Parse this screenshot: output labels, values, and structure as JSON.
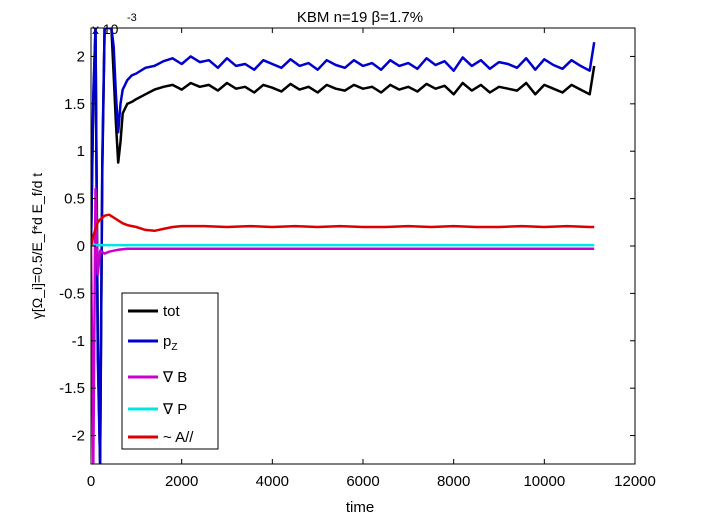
{
  "chart_data": {
    "type": "line",
    "title": "KBM n=19 β=1.7%",
    "xlabel": "time",
    "ylabel": "γ[Ω_i]=0.5/E_f*d E_f/d t",
    "y_exponent_label": "x 10",
    "y_exponent_power": "-3",
    "xlim": [
      0,
      12000
    ],
    "ylim": [
      -2.3,
      2.3
    ],
    "x_ticks": [
      0,
      2000,
      4000,
      6000,
      8000,
      10000,
      12000
    ],
    "x_tick_labels": [
      "0",
      "2000",
      "4000",
      "6000",
      "8000",
      "10000",
      "12000"
    ],
    "y_ticks": [
      -2,
      -1.5,
      -1,
      -0.5,
      0,
      0.5,
      1,
      1.5,
      2
    ],
    "y_tick_labels": [
      "-2",
      "-1.5",
      "-1",
      "-0.5",
      "0",
      "0.5",
      "1",
      "1.5",
      "2"
    ],
    "grid": false,
    "legend_position": "bottom-left",
    "series": [
      {
        "name": "tot",
        "color": "#000000",
        "x": [
          0,
          50,
          100,
          150,
          200,
          250,
          300,
          350,
          400,
          450,
          500,
          550,
          600,
          650,
          700,
          750,
          800,
          900,
          1000,
          1200,
          1400,
          1600,
          1800,
          2000,
          2200,
          2400,
          2600,
          2800,
          3000,
          3200,
          3400,
          3600,
          3800,
          4000,
          4200,
          4400,
          4600,
          4800,
          5000,
          5200,
          5400,
          5600,
          5800,
          6000,
          6200,
          6400,
          6600,
          6800,
          7000,
          7200,
          7400,
          7600,
          7800,
          8000,
          8200,
          8400,
          8600,
          8800,
          9000,
          9200,
          9400,
          9600,
          9800,
          10000,
          10200,
          10400,
          10600,
          10800,
          11000,
          11100
        ],
        "y": [
          0,
          1.5,
          2.3,
          -1.0,
          -2.3,
          0.8,
          2.3,
          2.3,
          2.3,
          2.3,
          1.8,
          1.3,
          0.88,
          1.1,
          1.4,
          1.45,
          1.5,
          1.52,
          1.55,
          1.6,
          1.65,
          1.68,
          1.7,
          1.65,
          1.72,
          1.68,
          1.7,
          1.64,
          1.72,
          1.66,
          1.68,
          1.62,
          1.7,
          1.67,
          1.63,
          1.71,
          1.65,
          1.68,
          1.62,
          1.7,
          1.66,
          1.64,
          1.7,
          1.66,
          1.68,
          1.62,
          1.7,
          1.65,
          1.68,
          1.63,
          1.71,
          1.66,
          1.69,
          1.6,
          1.72,
          1.64,
          1.7,
          1.62,
          1.68,
          1.66,
          1.64,
          1.72,
          1.6,
          1.7,
          1.66,
          1.62,
          1.7,
          1.65,
          1.6,
          1.9
        ]
      },
      {
        "name": "p_Z",
        "color": "#0000cc",
        "x": [
          0,
          50,
          100,
          150,
          200,
          250,
          300,
          350,
          400,
          450,
          500,
          550,
          600,
          650,
          700,
          750,
          800,
          900,
          1000,
          1200,
          1400,
          1600,
          1800,
          2000,
          2200,
          2400,
          2600,
          2800,
          3000,
          3200,
          3400,
          3600,
          3800,
          4000,
          4200,
          4400,
          4600,
          4800,
          5000,
          5200,
          5400,
          5600,
          5800,
          6000,
          6200,
          6400,
          6600,
          6800,
          7000,
          7200,
          7400,
          7600,
          7800,
          8000,
          8200,
          8400,
          8600,
          8800,
          9000,
          9200,
          9400,
          9600,
          9800,
          10000,
          10200,
          10400,
          10600,
          10800,
          11000,
          11100
        ],
        "y": [
          0,
          1.6,
          2.3,
          -1.2,
          -2.3,
          0.9,
          2.3,
          2.3,
          2.3,
          2.3,
          2.1,
          1.6,
          1.2,
          1.5,
          1.65,
          1.7,
          1.75,
          1.8,
          1.82,
          1.88,
          1.9,
          1.95,
          1.98,
          1.92,
          2.0,
          1.94,
          1.96,
          1.88,
          1.98,
          1.9,
          1.92,
          1.86,
          1.96,
          1.92,
          1.88,
          1.97,
          1.9,
          1.93,
          1.86,
          1.96,
          1.91,
          1.88,
          1.96,
          1.9,
          1.93,
          1.86,
          1.96,
          1.9,
          1.93,
          1.87,
          1.98,
          1.91,
          1.95,
          1.85,
          1.99,
          1.9,
          1.96,
          1.87,
          1.94,
          1.92,
          1.88,
          1.98,
          1.86,
          1.97,
          1.91,
          1.87,
          1.96,
          1.9,
          1.85,
          2.15
        ]
      },
      {
        "name": "∇ B",
        "color": "#cc00cc",
        "x": [
          0,
          50,
          100,
          150,
          200,
          300,
          400,
          500,
          600,
          800,
          1000,
          2000,
          4000,
          6000,
          8000,
          10000,
          11100
        ],
        "y": [
          0,
          -2.3,
          0.6,
          -0.3,
          -0.05,
          -0.08,
          -0.06,
          -0.05,
          -0.04,
          -0.03,
          -0.03,
          -0.03,
          -0.03,
          -0.03,
          -0.03,
          -0.03,
          -0.03
        ]
      },
      {
        "name": "∇ P",
        "color": "#00e5e5",
        "x": [
          0,
          50,
          100,
          200,
          400,
          1000,
          2000,
          4000,
          6000,
          8000,
          10000,
          11100
        ],
        "y": [
          0,
          0.02,
          0.01,
          0.01,
          0.01,
          0.01,
          0.01,
          0.01,
          0.01,
          0.01,
          0.01,
          0.01
        ]
      },
      {
        "name": "~ A//",
        "color": "#dd0000",
        "x": [
          0,
          50,
          100,
          150,
          200,
          300,
          400,
          500,
          600,
          700,
          800,
          1000,
          1200,
          1400,
          1600,
          1800,
          2000,
          2500,
          3000,
          3500,
          4000,
          4500,
          5000,
          5500,
          6000,
          6500,
          7000,
          7500,
          8000,
          8500,
          9000,
          9500,
          10000,
          10500,
          11000,
          11100
        ],
        "y": [
          0,
          0.1,
          0.18,
          0.25,
          0.28,
          0.32,
          0.33,
          0.3,
          0.27,
          0.24,
          0.22,
          0.2,
          0.17,
          0.16,
          0.18,
          0.2,
          0.21,
          0.21,
          0.2,
          0.21,
          0.2,
          0.21,
          0.2,
          0.21,
          0.2,
          0.2,
          0.21,
          0.2,
          0.21,
          0.2,
          0.2,
          0.21,
          0.2,
          0.21,
          0.2,
          0.2
        ]
      }
    ]
  }
}
